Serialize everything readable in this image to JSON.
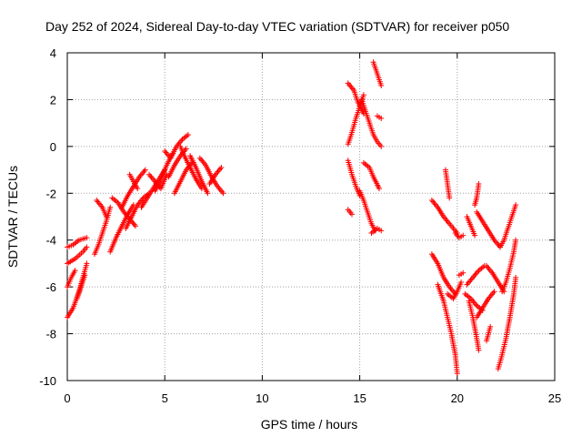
{
  "chart_data": {
    "type": "scatter",
    "title": "Day 252 of 2024, Sidereal Day-to-day VTEC variation (SDTVAR) for receiver p050",
    "xlabel": "GPS time / hours",
    "ylabel": "SDTVAR / TECUs",
    "xlim": [
      0,
      25
    ],
    "ylim": [
      -10,
      4
    ],
    "x_ticks": [
      "0",
      "5",
      "10",
      "15",
      "20",
      "25"
    ],
    "y_ticks": [
      "-10",
      "-8",
      "-6",
      "-4",
      "-2",
      "0",
      "2",
      "4"
    ],
    "grid": true,
    "marker": "plus",
    "color": "#ff0000",
    "segments": [
      [
        [
          0.0,
          -5.0
        ],
        [
          0.4,
          -4.8
        ],
        [
          0.8,
          -4.5
        ],
        [
          1.0,
          -4.3
        ]
      ],
      [
        [
          0.0,
          -4.3
        ],
        [
          0.3,
          -4.2
        ],
        [
          0.6,
          -4.0
        ],
        [
          1.0,
          -3.9
        ]
      ],
      [
        [
          0.0,
          -7.3
        ],
        [
          0.3,
          -6.9
        ],
        [
          0.6,
          -6.2
        ],
        [
          0.8,
          -5.6
        ],
        [
          1.0,
          -5.0
        ]
      ],
      [
        [
          0.0,
          -6.0
        ],
        [
          0.2,
          -5.6
        ],
        [
          0.4,
          -5.3
        ]
      ],
      [
        [
          0.5,
          -6.5
        ],
        [
          0.7,
          -6.0
        ],
        [
          0.9,
          -5.5
        ]
      ],
      [
        [
          1.4,
          -4.6
        ],
        [
          1.6,
          -4.2
        ],
        [
          1.8,
          -3.7
        ],
        [
          2.0,
          -3.2
        ],
        [
          2.2,
          -2.6
        ]
      ],
      [
        [
          1.5,
          -2.3
        ],
        [
          1.8,
          -2.6
        ],
        [
          2.0,
          -3.0
        ]
      ],
      [
        [
          2.2,
          -4.5
        ],
        [
          2.5,
          -3.9
        ],
        [
          2.8,
          -3.4
        ],
        [
          3.1,
          -2.9
        ],
        [
          3.4,
          -2.5
        ]
      ],
      [
        [
          2.3,
          -2.2
        ],
        [
          2.6,
          -2.4
        ],
        [
          2.9,
          -2.8
        ],
        [
          3.2,
          -3.1
        ],
        [
          3.5,
          -3.4
        ]
      ],
      [
        [
          2.8,
          -2.6
        ],
        [
          3.1,
          -2.1
        ],
        [
          3.4,
          -1.7
        ],
        [
          3.7,
          -1.3
        ],
        [
          4.0,
          -1.0
        ]
      ],
      [
        [
          3.0,
          -3.5
        ],
        [
          3.3,
          -3.0
        ],
        [
          3.6,
          -2.5
        ],
        [
          3.9,
          -2.2
        ],
        [
          4.2,
          -2.0
        ]
      ],
      [
        [
          3.2,
          -1.2
        ],
        [
          3.4,
          -1.5
        ],
        [
          3.6,
          -1.8
        ]
      ],
      [
        [
          3.8,
          -2.6
        ],
        [
          4.1,
          -2.2
        ],
        [
          4.4,
          -1.8
        ],
        [
          4.7,
          -1.4
        ],
        [
          5.0,
          -1.0
        ]
      ],
      [
        [
          4.2,
          -1.2
        ],
        [
          4.5,
          -1.5
        ],
        [
          4.8,
          -1.8
        ],
        [
          5.1,
          -1.2
        ]
      ],
      [
        [
          4.5,
          -1.9
        ],
        [
          4.8,
          -1.4
        ],
        [
          5.1,
          -0.8
        ],
        [
          5.4,
          -0.3
        ]
      ],
      [
        [
          5.0,
          -0.2
        ],
        [
          5.3,
          -0.5
        ],
        [
          5.6,
          0.0
        ],
        [
          5.9,
          0.3
        ],
        [
          6.2,
          0.5
        ]
      ],
      [
        [
          5.2,
          -1.3
        ],
        [
          5.5,
          -0.8
        ],
        [
          5.8,
          -0.4
        ],
        [
          6.1,
          -0.1
        ]
      ],
      [
        [
          5.5,
          -2.0
        ],
        [
          5.8,
          -1.5
        ],
        [
          6.1,
          -1.0
        ],
        [
          6.4,
          -0.7
        ]
      ],
      [
        [
          5.8,
          0.0
        ],
        [
          6.0,
          -0.4
        ],
        [
          6.3,
          -0.9
        ],
        [
          6.6,
          -1.4
        ],
        [
          6.9,
          -1.8
        ]
      ],
      [
        [
          6.3,
          -0.4
        ],
        [
          6.6,
          -0.9
        ],
        [
          6.9,
          -1.5
        ],
        [
          7.2,
          -2.0
        ]
      ],
      [
        [
          6.8,
          -0.5
        ],
        [
          7.1,
          -0.8
        ],
        [
          7.4,
          -1.3
        ],
        [
          7.7,
          -1.7
        ],
        [
          8.0,
          -2.0
        ]
      ],
      [
        [
          7.3,
          -1.6
        ],
        [
          7.6,
          -1.2
        ],
        [
          7.9,
          -0.9
        ]
      ],
      [
        [
          14.4,
          0.1
        ],
        [
          14.6,
          0.6
        ],
        [
          14.8,
          1.2
        ],
        [
          15.0,
          1.7
        ],
        [
          15.2,
          2.2
        ]
      ],
      [
        [
          14.4,
          2.7
        ],
        [
          14.7,
          2.4
        ],
        [
          14.9,
          1.9
        ],
        [
          15.2,
          1.4
        ]
      ],
      [
        [
          15.1,
          2.0
        ],
        [
          15.3,
          1.5
        ],
        [
          15.5,
          1.0
        ],
        [
          15.7,
          0.5
        ],
        [
          15.9,
          0.2
        ],
        [
          16.1,
          0.0
        ]
      ],
      [
        [
          14.4,
          -0.6
        ],
        [
          14.6,
          -1.2
        ],
        [
          14.8,
          -1.7
        ],
        [
          15.0,
          -2.1
        ]
      ],
      [
        [
          14.4,
          -2.7
        ],
        [
          14.6,
          -2.9
        ]
      ],
      [
        [
          15.0,
          -1.9
        ],
        [
          15.2,
          -2.3
        ],
        [
          15.4,
          -2.8
        ],
        [
          15.6,
          -3.3
        ],
        [
          15.8,
          -3.6
        ]
      ],
      [
        [
          15.2,
          -0.7
        ],
        [
          15.5,
          -0.9
        ],
        [
          15.7,
          -1.3
        ],
        [
          16.0,
          -1.8
        ]
      ],
      [
        [
          15.7,
          3.6
        ],
        [
          15.9,
          3.1
        ],
        [
          16.1,
          2.6
        ]
      ],
      [
        [
          15.9,
          1.3
        ],
        [
          16.1,
          1.2
        ]
      ],
      [
        [
          15.6,
          -3.7
        ],
        [
          15.9,
          -3.5
        ],
        [
          16.1,
          -3.6
        ]
      ],
      [
        [
          18.7,
          -2.3
        ],
        [
          19.0,
          -2.6
        ],
        [
          19.3,
          -3.0
        ],
        [
          19.6,
          -3.3
        ],
        [
          20.0,
          -3.7
        ]
      ],
      [
        [
          19.4,
          -1.0
        ],
        [
          19.5,
          -1.6
        ],
        [
          19.6,
          -2.2
        ]
      ],
      [
        [
          18.7,
          -4.6
        ],
        [
          19.0,
          -5.0
        ],
        [
          19.3,
          -5.6
        ],
        [
          19.6,
          -6.0
        ],
        [
          19.9,
          -6.3
        ]
      ],
      [
        [
          19.0,
          -5.9
        ],
        [
          19.3,
          -6.6
        ],
        [
          19.5,
          -7.3
        ],
        [
          19.7,
          -8.0
        ],
        [
          19.9,
          -8.9
        ],
        [
          20.0,
          -9.7
        ]
      ],
      [
        [
          19.5,
          -6.3
        ],
        [
          19.8,
          -6.5
        ],
        [
          20.0,
          -6.2
        ],
        [
          20.2,
          -5.8
        ]
      ],
      [
        [
          19.9,
          -3.7
        ],
        [
          20.1,
          -3.9
        ],
        [
          20.3,
          -3.8
        ]
      ],
      [
        [
          20.1,
          -5.5
        ],
        [
          20.3,
          -5.4
        ]
      ],
      [
        [
          20.5,
          -3.0
        ],
        [
          20.7,
          -3.4
        ],
        [
          20.9,
          -3.8
        ]
      ],
      [
        [
          20.4,
          -6.3
        ],
        [
          20.7,
          -6.5
        ],
        [
          21.0,
          -6.8
        ],
        [
          21.3,
          -7.0
        ]
      ],
      [
        [
          20.5,
          -5.9
        ],
        [
          20.8,
          -5.6
        ],
        [
          21.1,
          -5.3
        ],
        [
          21.4,
          -5.1
        ]
      ],
      [
        [
          20.9,
          -2.5
        ],
        [
          21.0,
          -2.2
        ],
        [
          21.1,
          -1.6
        ]
      ],
      [
        [
          20.6,
          -6.6
        ],
        [
          20.8,
          -7.3
        ],
        [
          21.0,
          -8.2
        ],
        [
          21.1,
          -8.7
        ]
      ],
      [
        [
          21.0,
          -2.8
        ],
        [
          21.3,
          -3.2
        ],
        [
          21.6,
          -3.6
        ],
        [
          21.9,
          -4.0
        ],
        [
          22.2,
          -4.3
        ]
      ],
      [
        [
          21.0,
          -7.3
        ],
        [
          21.3,
          -6.9
        ],
        [
          21.6,
          -6.5
        ],
        [
          21.9,
          -6.2
        ]
      ],
      [
        [
          21.5,
          -5.1
        ],
        [
          21.8,
          -5.4
        ],
        [
          22.1,
          -5.8
        ],
        [
          22.4,
          -6.2
        ]
      ],
      [
        [
          21.5,
          -8.3
        ],
        [
          21.7,
          -7.7
        ]
      ],
      [
        [
          22.2,
          -4.3
        ],
        [
          22.4,
          -4.0
        ],
        [
          22.6,
          -3.5
        ],
        [
          22.8,
          -3.0
        ],
        [
          23.0,
          -2.5
        ]
      ],
      [
        [
          22.3,
          -6.2
        ],
        [
          22.5,
          -5.8
        ],
        [
          22.7,
          -5.2
        ],
        [
          22.9,
          -4.5
        ],
        [
          23.0,
          -4.0
        ]
      ],
      [
        [
          22.1,
          -9.5
        ],
        [
          22.3,
          -8.9
        ],
        [
          22.5,
          -8.2
        ],
        [
          22.7,
          -7.3
        ],
        [
          22.9,
          -6.3
        ],
        [
          23.0,
          -5.6
        ]
      ]
    ]
  }
}
